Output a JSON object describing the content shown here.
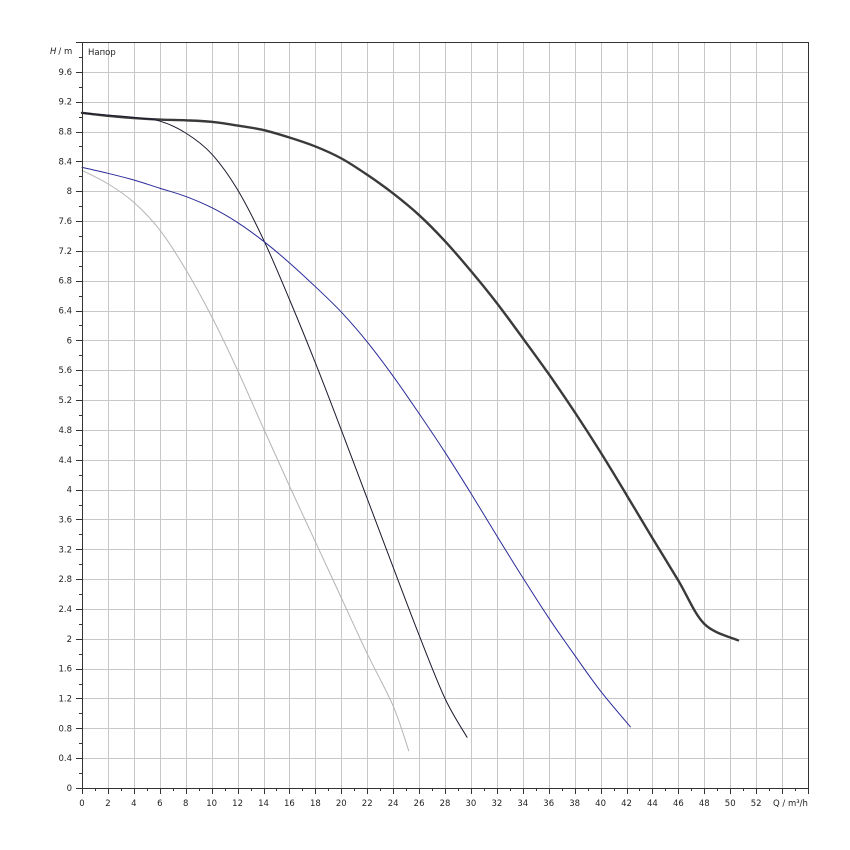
{
  "chart_data": {
    "type": "line",
    "title": "",
    "ylabel_symbol": "H",
    "ylabel_unit": "/ m",
    "y_caption": "Напор",
    "xlabel": "Q / m³/h",
    "xlim": [
      0,
      56
    ],
    "ylim": [
      0,
      10
    ],
    "grid": true,
    "x_ticks": [
      "0",
      "2",
      "4",
      "6",
      "8",
      "10",
      "12",
      "14",
      "16",
      "18",
      "20",
      "22",
      "24",
      "26",
      "28",
      "30",
      "32",
      "34",
      "36",
      "38",
      "40",
      "42",
      "44",
      "46",
      "48",
      "50",
      "52"
    ],
    "y_ticks": [
      "0",
      "0.4",
      "0.8",
      "1.2",
      "1.6",
      "2",
      "2.4",
      "2.8",
      "3.2",
      "3.6",
      "4",
      "4.4",
      "4.8",
      "5.2",
      "5.6",
      "6",
      "6.4",
      "6.8",
      "7.2",
      "7.6",
      "8",
      "8.4",
      "8.8",
      "9.2",
      "9.6"
    ],
    "series": [
      {
        "color": "#3a3a3a",
        "stroke_weight": "heavy",
        "points": [
          [
            0,
            9.05
          ],
          [
            2,
            9.01
          ],
          [
            4,
            8.98
          ],
          [
            6,
            8.96
          ],
          [
            8,
            8.95
          ],
          [
            10,
            8.93
          ],
          [
            12,
            8.88
          ],
          [
            14,
            8.82
          ],
          [
            16,
            8.72
          ],
          [
            18,
            8.6
          ],
          [
            20,
            8.44
          ],
          [
            22,
            8.22
          ],
          [
            24,
            7.97
          ],
          [
            26,
            7.68
          ],
          [
            28,
            7.33
          ],
          [
            30,
            6.93
          ],
          [
            32,
            6.5
          ],
          [
            34,
            6.03
          ],
          [
            36,
            5.55
          ],
          [
            38,
            5.04
          ],
          [
            40,
            4.5
          ],
          [
            42,
            3.93
          ],
          [
            44,
            3.35
          ],
          [
            46,
            2.78
          ],
          [
            48,
            2.2
          ],
          [
            50.6,
            1.98
          ]
        ]
      },
      {
        "color": "#1a1a2e",
        "stroke_weight": "thin",
        "points": [
          [
            0,
            9.05
          ],
          [
            2,
            9.02
          ],
          [
            4,
            8.99
          ],
          [
            6,
            8.94
          ],
          [
            8,
            8.78
          ],
          [
            10,
            8.5
          ],
          [
            12,
            8.02
          ],
          [
            14,
            7.35
          ],
          [
            16,
            6.55
          ],
          [
            18,
            5.7
          ],
          [
            20,
            4.8
          ],
          [
            22,
            3.88
          ],
          [
            24,
            2.96
          ],
          [
            26,
            2.05
          ],
          [
            28,
            1.2
          ],
          [
            29.7,
            0.68
          ]
        ]
      },
      {
        "color": "#2a2a9a",
        "stroke_weight": "thin",
        "points": [
          [
            0,
            8.32
          ],
          [
            2,
            8.24
          ],
          [
            4,
            8.15
          ],
          [
            6,
            8.04
          ],
          [
            8,
            7.93
          ],
          [
            10,
            7.78
          ],
          [
            12,
            7.58
          ],
          [
            14,
            7.33
          ],
          [
            16,
            7.04
          ],
          [
            18,
            6.72
          ],
          [
            20,
            6.38
          ],
          [
            22,
            5.98
          ],
          [
            24,
            5.52
          ],
          [
            26,
            5.02
          ],
          [
            28,
            4.5
          ],
          [
            30,
            3.95
          ],
          [
            32,
            3.38
          ],
          [
            34,
            2.82
          ],
          [
            36,
            2.28
          ],
          [
            38,
            1.78
          ],
          [
            40,
            1.3
          ],
          [
            42.3,
            0.82
          ]
        ]
      },
      {
        "color": "#b4b4b4",
        "stroke_weight": "thin",
        "points": [
          [
            0,
            8.28
          ],
          [
            2,
            8.1
          ],
          [
            4,
            7.85
          ],
          [
            6,
            7.48
          ],
          [
            8,
            6.95
          ],
          [
            10,
            6.32
          ],
          [
            12,
            5.6
          ],
          [
            14,
            4.82
          ],
          [
            16,
            4.05
          ],
          [
            18,
            3.3
          ],
          [
            20,
            2.55
          ],
          [
            22,
            1.8
          ],
          [
            24,
            1.1
          ],
          [
            25.2,
            0.5
          ]
        ]
      }
    ]
  }
}
